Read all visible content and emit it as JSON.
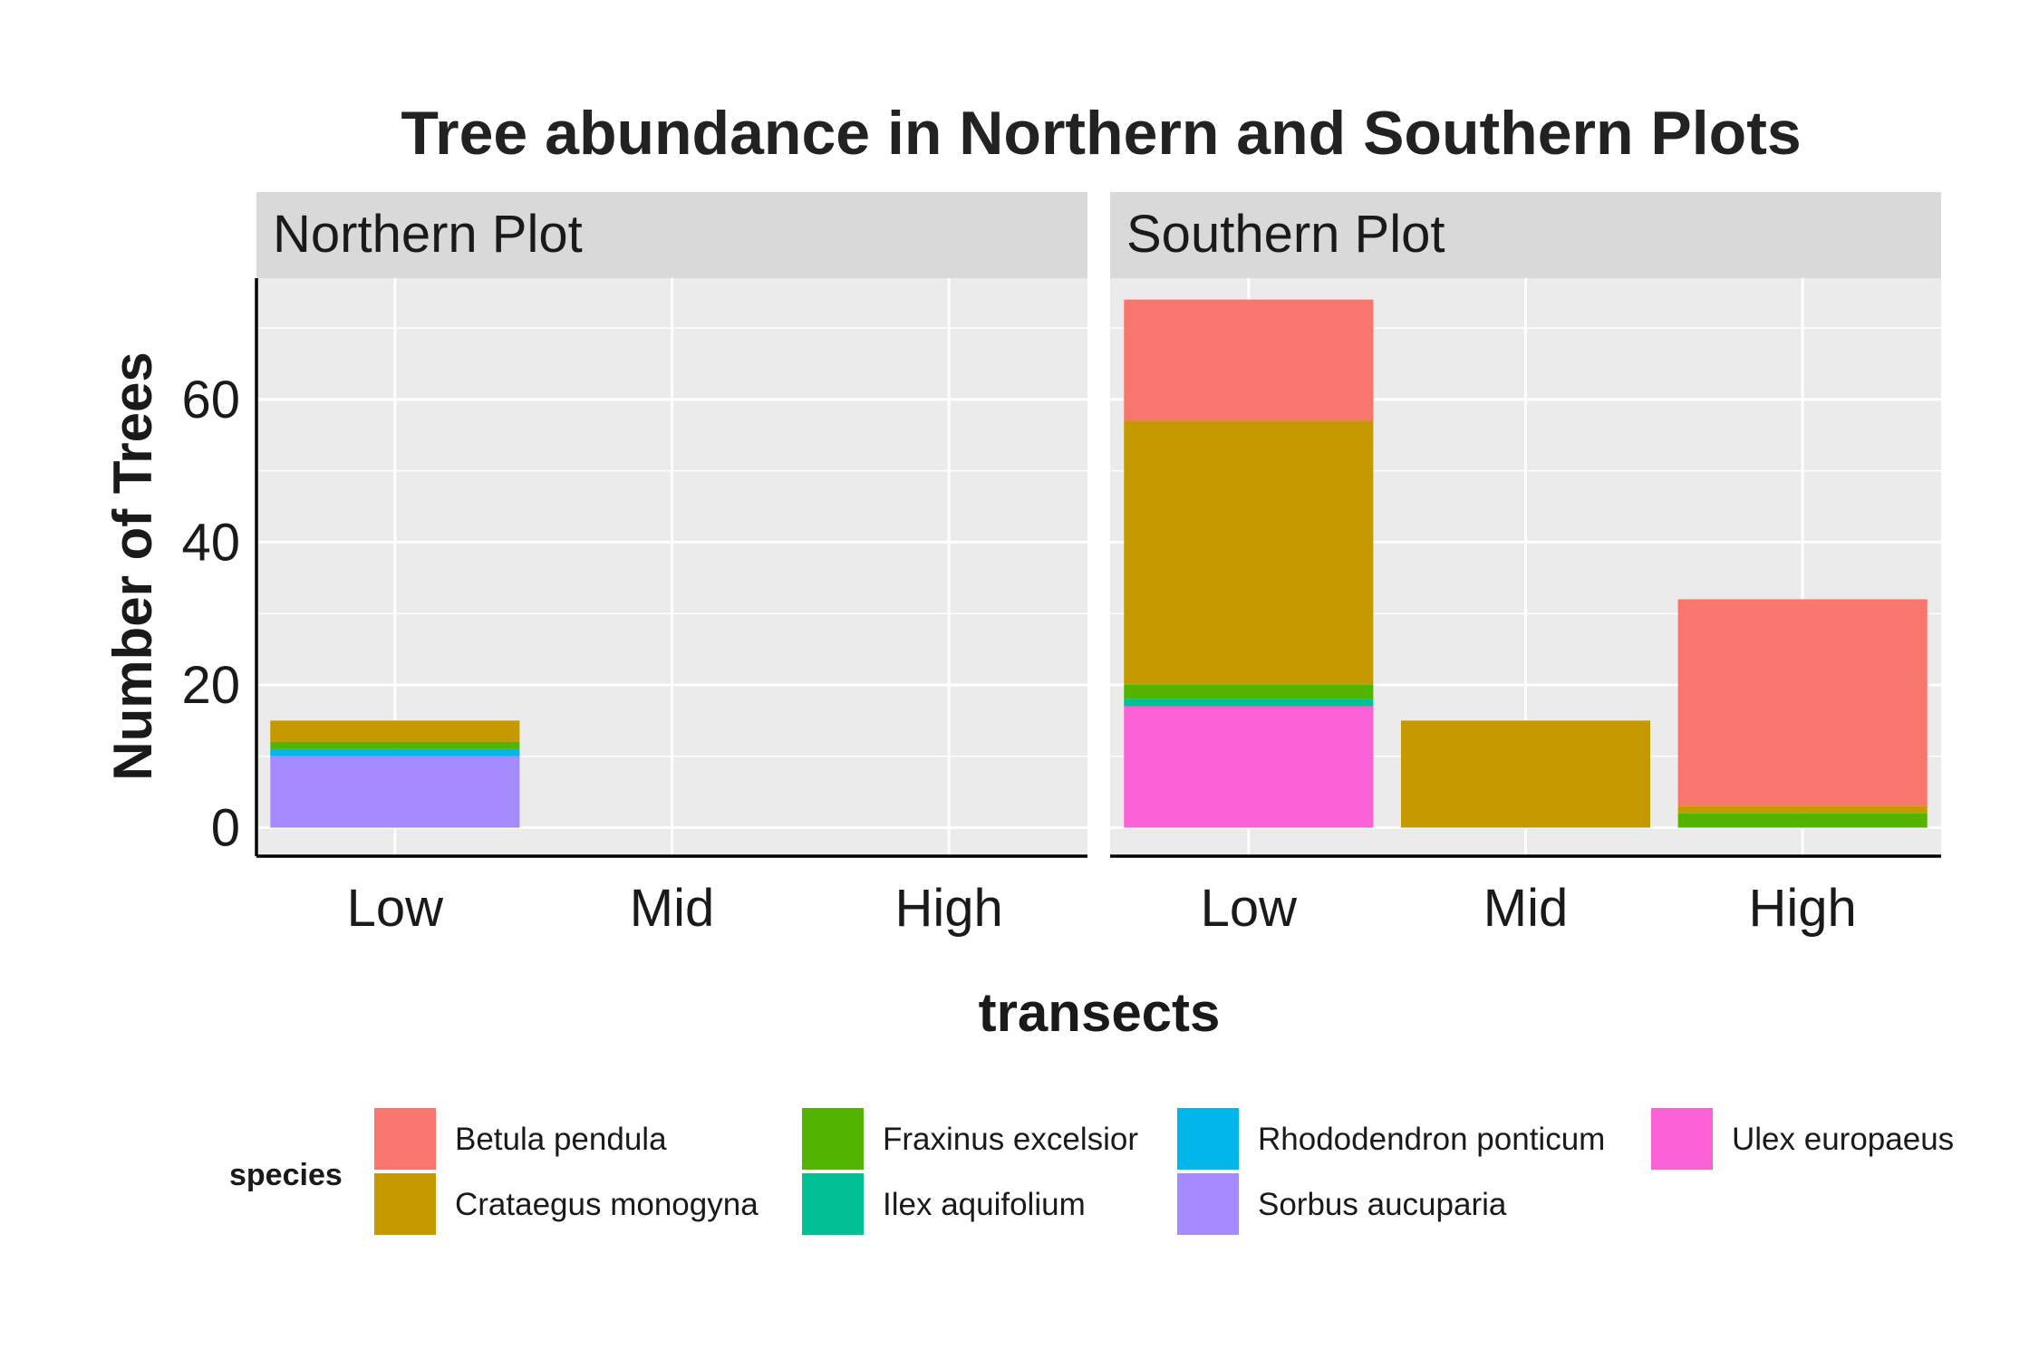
{
  "chart_data": {
    "type": "bar",
    "stacked": true,
    "title": "Tree abundance in Northern and Southern Plots",
    "xlabel": "transects",
    "ylabel": "Number of Trees",
    "categories": [
      "Low",
      "Mid",
      "High"
    ],
    "ylim": [
      -4,
      77
    ],
    "yticks": [
      0,
      20,
      40,
      60
    ],
    "grid": true,
    "legend": {
      "title": "species",
      "position": "bottom",
      "columns": [
        [
          "Betula pendula",
          "Crataegus monogyna"
        ],
        [
          "Fraxinus excelsior",
          "Ilex aquifolium"
        ],
        [
          "Rhododendron ponticum",
          "Sorbus aucuparia"
        ],
        [
          "Ulex europaeus"
        ]
      ]
    },
    "species": [
      {
        "name": "Betula pendula",
        "color": "#F8766D"
      },
      {
        "name": "Crataegus monogyna",
        "color": "#C49A00"
      },
      {
        "name": "Fraxinus excelsior",
        "color": "#53B400"
      },
      {
        "name": "Ilex aquifolium",
        "color": "#00C094"
      },
      {
        "name": "Rhododendron ponticum",
        "color": "#00B6EB"
      },
      {
        "name": "Sorbus aucuparia",
        "color": "#A58AFF"
      },
      {
        "name": "Ulex europaeus",
        "color": "#FB61D7"
      }
    ],
    "panels": [
      {
        "name": "Northern Plot",
        "stack_order_bottom_to_top": [
          "Sorbus aucuparia",
          "Rhododendron ponticum",
          "Ilex aquifolium",
          "Fraxinus excelsior",
          "Crataegus monogyna"
        ],
        "values": {
          "Low": {
            "Sorbus aucuparia": 10,
            "Rhododendron ponticum": 1,
            "Fraxinus excelsior": 1,
            "Crataegus monogyna": 3
          },
          "Mid": {},
          "High": {}
        }
      },
      {
        "name": "Southern Plot",
        "stack_order_bottom_to_top": [
          "Ulex europaeus",
          "Ilex aquifolium",
          "Fraxinus excelsior",
          "Crataegus monogyna",
          "Betula pendula"
        ],
        "values": {
          "Low": {
            "Ulex europaeus": 17,
            "Ilex aquifolium": 1,
            "Fraxinus excelsior": 2,
            "Crataegus monogyna": 37,
            "Betula pendula": 17
          },
          "Mid": {
            "Crataegus monogyna": 15
          },
          "High": {
            "Fraxinus excelsior": 2,
            "Crataegus monogyna": 1,
            "Betula pendula": 29
          }
        }
      }
    ]
  }
}
